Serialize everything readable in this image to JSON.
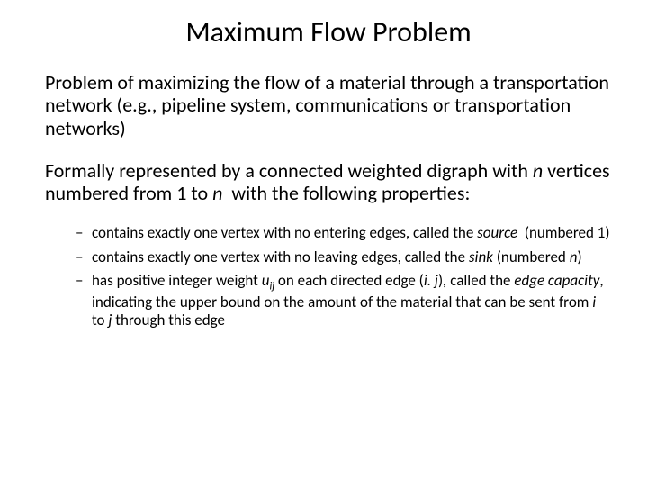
{
  "title": "Maximum Flow Problem",
  "para1_html": "Problem of maximizing the flow of a material through a transportation network (e.g., pipeline system, communications or transportation networks)",
  "para2_html": "Formally represented by a connected weighted digraph with <span class=\"italic\">n</span> vertices numbered from 1 to <span class=\"italic\">n</span>&nbsp; with the following properties:",
  "bullets": [
    "contains exactly one vertex with no entering edges, called the <span class=\"italic\">source</span>&nbsp; (numbered 1)",
    "contains exactly one vertex with no leaving edges, called the <span class=\"italic\">sink</span> (numbered <span class=\"italic\">n</span>)",
    "has positive integer weight <span class=\"italic\">u</span><span class=\"sub\">ij</span> on each directed edge (<span class=\"italic\">i. j</span>)<span class=\"italic\">,</span> called the <span class=\"italic\">edge capacity</span>,&nbsp; indicating the upper bound on the amount of the material that can be sent from <span class=\"italic\">i</span> to <span class=\"italic\">j</span> through this edge"
  ]
}
